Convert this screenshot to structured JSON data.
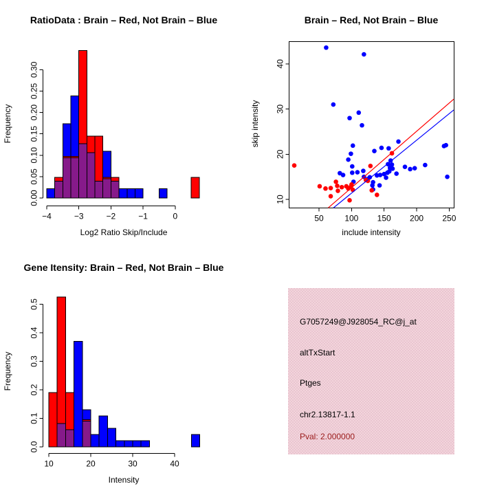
{
  "colors": {
    "window_background": "#ffffff",
    "red": "#ff0000",
    "blue": "#0000ff",
    "overlap": "#861a8a",
    "axis": "#000000",
    "info_box_bg": "#e9c6d0",
    "info_box_bg_dot": "#f3d4dc",
    "pval_text": "#9b1b1b"
  },
  "info_box": {
    "probe_id": "G7057249@J928054_RC@j_at",
    "event_type": "altTxStart",
    "gene": "Ptges",
    "location": "chr2.13817-1.1",
    "pval_label": "Pval: 2.000000"
  },
  "chart_data": [
    {
      "type": "histogram",
      "title": "RatioData : Brain – Red, Not Brain – Blue",
      "xlabel": "Log2 Ratio Skip/Include",
      "ylabel": "Frequency",
      "bin_width": 0.25,
      "xlim": [
        -4.15,
        0.95
      ],
      "ylim": [
        0,
        0.35
      ],
      "grid": false,
      "x_ticks": [
        {
          "v": -4,
          "label": "−4"
        },
        {
          "v": -3,
          "label": "−3"
        },
        {
          "v": -2,
          "label": "−2"
        },
        {
          "v": -1,
          "label": "−1"
        },
        {
          "v": 0,
          "label": "0"
        }
      ],
      "y_ticks": [
        {
          "v": 0.0,
          "label": "0.00"
        },
        {
          "v": 0.05,
          "label": "0.05"
        },
        {
          "v": 0.1,
          "label": "0.10"
        },
        {
          "v": 0.15,
          "label": "0.15"
        },
        {
          "v": 0.2,
          "label": "0.20"
        },
        {
          "v": 0.25,
          "label": "0.25"
        },
        {
          "v": 0.3,
          "label": "0.30"
        }
      ],
      "series": [
        {
          "name": "Not Brain",
          "color": "blue",
          "bins": [
            [
              -4,
              0.022
            ],
            [
              -3.75,
              0.043
            ],
            [
              -3.5,
              0.174
            ],
            [
              -3.25,
              0.239
            ],
            [
              -3,
              0.13
            ],
            [
              -2.75,
              0.109
            ],
            [
              -2.5,
              0.043
            ],
            [
              -2.25,
              0.109
            ],
            [
              -2,
              0.043
            ],
            [
              -1.75,
              0.022
            ],
            [
              -1.5,
              0.022
            ],
            [
              -1.25,
              0.022
            ],
            [
              -0.5,
              0.022
            ]
          ]
        },
        {
          "name": "Brain",
          "color": "red",
          "bins": [
            [
              -3.75,
              0.048
            ],
            [
              -3.5,
              0.097
            ],
            [
              -3.25,
              0.097
            ],
            [
              -3,
              0.345
            ],
            [
              -2.75,
              0.145
            ],
            [
              -2.5,
              0.145
            ],
            [
              -2.25,
              0.048
            ],
            [
              -2,
              0.048
            ],
            [
              0.5,
              0.048
            ]
          ]
        }
      ]
    },
    {
      "type": "scatter",
      "title": "Brain – Red, Not Brain – Blue",
      "xlabel": "include intensity",
      "ylabel": "skip intensity",
      "xlim": [
        3,
        257
      ],
      "ylim": [
        8,
        45
      ],
      "grid": false,
      "x_ticks": [
        {
          "v": 50,
          "label": "50"
        },
        {
          "v": 100,
          "label": "100"
        },
        {
          "v": 150,
          "label": "150"
        },
        {
          "v": 200,
          "label": "200"
        },
        {
          "v": 250,
          "label": "250"
        }
      ],
      "y_ticks": [
        {
          "v": 10,
          "label": "10"
        },
        {
          "v": 20,
          "label": "20"
        },
        {
          "v": 30,
          "label": "30"
        },
        {
          "v": 40,
          "label": "40"
        }
      ],
      "series": [
        {
          "name": "Not Brain",
          "color": "blue",
          "points": [
            [
              61,
              43.6
            ],
            [
              119,
              42.1
            ],
            [
              72,
              31.0
            ],
            [
              97,
              28.0
            ],
            [
              111,
              29.2
            ],
            [
              116,
              26.4
            ],
            [
              102,
              21.9
            ],
            [
              99,
              20.1
            ],
            [
              95,
              18.8
            ],
            [
              101,
              17.3
            ],
            [
              82,
              15.8
            ],
            [
              87,
              15.4
            ],
            [
              101,
              15.9
            ],
            [
              109,
              16.0
            ],
            [
              103,
              13.9
            ],
            [
              118,
              16.3
            ],
            [
              119,
              15.0
            ],
            [
              125,
              14.5
            ],
            [
              128,
              14.9
            ],
            [
              135,
              20.7
            ],
            [
              146,
              21.4
            ],
            [
              157,
              21.3
            ],
            [
              172,
              22.8
            ],
            [
              160,
              18.6
            ],
            [
              156,
              17.8
            ],
            [
              162,
              17.7
            ],
            [
              159,
              17.0
            ],
            [
              163,
              16.8
            ],
            [
              182,
              17.2
            ],
            [
              190,
              16.7
            ],
            [
              197,
              16.9
            ],
            [
              213,
              17.6
            ],
            [
              242,
              21.8
            ],
            [
              245,
              22.0
            ],
            [
              247,
              15.0
            ],
            [
              150,
              15.6
            ],
            [
              144,
              15.4
            ],
            [
              139,
              15.3
            ],
            [
              153,
              14.8
            ],
            [
              169,
              15.7
            ],
            [
              133,
              13.8
            ],
            [
              132,
              13.1
            ],
            [
              143,
              13.1
            ],
            [
              133,
              12.2
            ],
            [
              155,
              15.9
            ],
            [
              158,
              16.2
            ]
          ]
        },
        {
          "name": "Brain",
          "color": "red",
          "points": [
            [
              12,
              17.5
            ],
            [
              51,
              12.9
            ],
            [
              60,
              12.4
            ],
            [
              68,
              12.5
            ],
            [
              76,
              13.9
            ],
            [
              78,
              13.0
            ],
            [
              79,
              11.9
            ],
            [
              68,
              10.7
            ],
            [
              85,
              12.7
            ],
            [
              92,
              12.9
            ],
            [
              95,
              12.4
            ],
            [
              99,
              12.8
            ],
            [
              102,
              12.1
            ],
            [
              100,
              13.3
            ],
            [
              97,
              9.8
            ],
            [
              122,
              14.3
            ],
            [
              125,
              14.1
            ],
            [
              129,
              17.4
            ],
            [
              131,
              12.0
            ],
            [
              139,
              11.0
            ],
            [
              162,
              20.2
            ]
          ]
        }
      ],
      "lines": [
        {
          "color": "red",
          "from": [
            64,
            8.1
          ],
          "to": [
            257,
            32.2
          ]
        },
        {
          "color": "blue",
          "from": [
            72,
            8.1
          ],
          "to": [
            257,
            29.8
          ]
        }
      ]
    },
    {
      "type": "histogram",
      "title": "Gene Itensity: Brain – Red, Not Brain – Blue",
      "xlabel": "Intensity",
      "ylabel": "Frequency",
      "bin_width": 2,
      "xlim": [
        9,
        47
      ],
      "ylim": [
        0,
        0.53
      ],
      "grid": false,
      "x_ticks": [
        {
          "v": 10,
          "label": "10"
        },
        {
          "v": 20,
          "label": "20"
        },
        {
          "v": 30,
          "label": "30"
        },
        {
          "v": 40,
          "label": "40"
        }
      ],
      "y_ticks": [
        {
          "v": 0.0,
          "label": "0.0"
        },
        {
          "v": 0.1,
          "label": "0.1"
        },
        {
          "v": 0.2,
          "label": "0.2"
        },
        {
          "v": 0.3,
          "label": "0.3"
        },
        {
          "v": 0.4,
          "label": "0.4"
        },
        {
          "v": 0.5,
          "label": "0.5"
        }
      ],
      "series": [
        {
          "name": "Not Brain",
          "color": "blue",
          "bins": [
            [
              12,
              0.087
            ],
            [
              14,
              0.065
            ],
            [
              16,
              0.37
            ],
            [
              18,
              0.13
            ],
            [
              20,
              0.043
            ],
            [
              22,
              0.109
            ],
            [
              24,
              0.065
            ],
            [
              26,
              0.022
            ],
            [
              28,
              0.022
            ],
            [
              30,
              0.022
            ],
            [
              32,
              0.022
            ],
            [
              44,
              0.043
            ]
          ]
        },
        {
          "name": "Brain",
          "color": "red",
          "bins": [
            [
              10,
              0.19
            ],
            [
              12,
              0.525
            ],
            [
              14,
              0.19
            ],
            [
              18,
              0.095
            ]
          ]
        }
      ]
    }
  ]
}
